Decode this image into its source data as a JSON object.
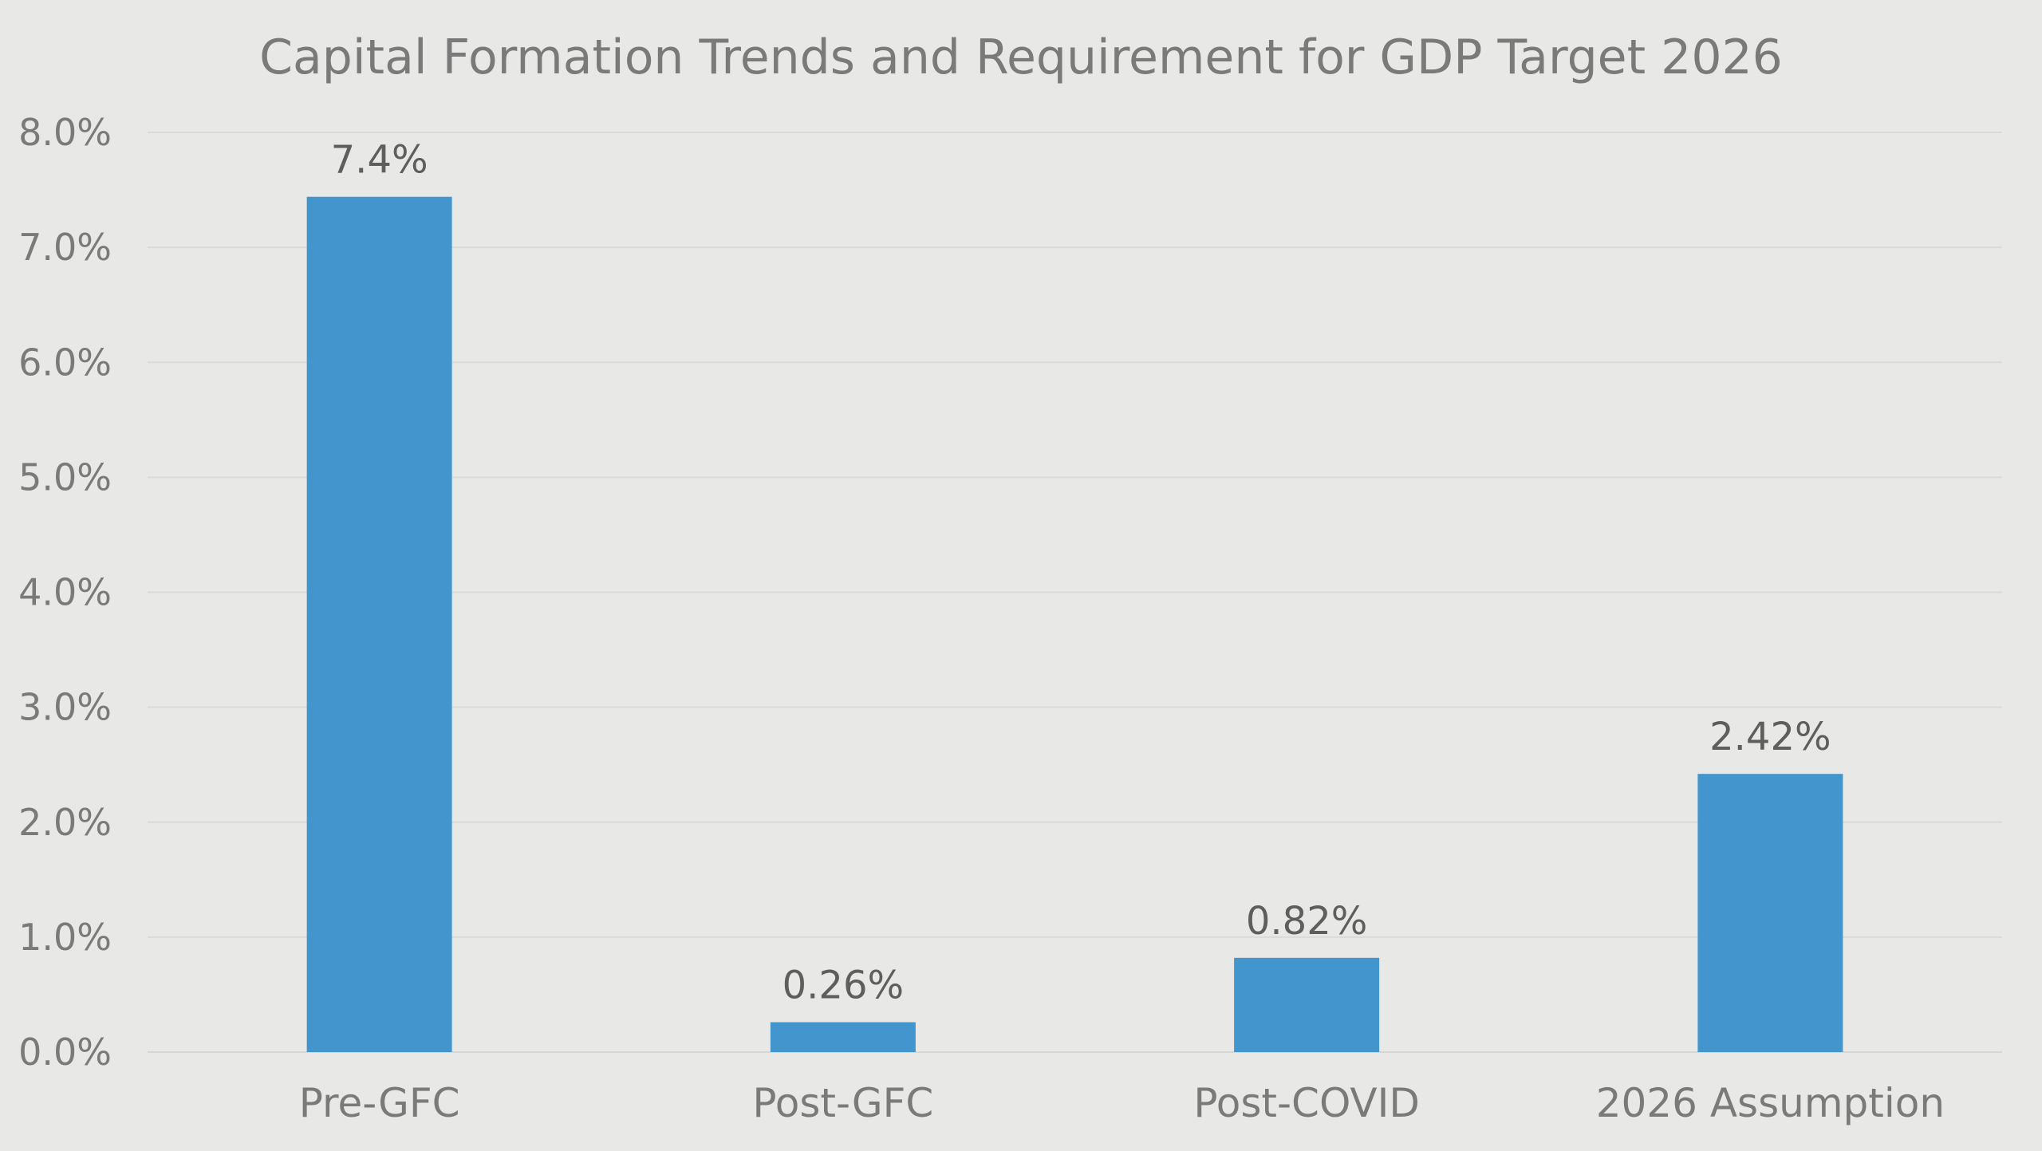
{
  "chart_data": {
    "type": "bar",
    "title": "Capital Formation Trends and Requirement for GDP Target 2026",
    "xlabel": "",
    "ylabel": "",
    "categories": [
      "Pre-GFC",
      "Post-GFC",
      "Post-COVID",
      "2026 Assumption"
    ],
    "values": [
      7.44,
      0.26,
      0.82,
      2.42
    ],
    "data_labels": [
      "7.4%",
      "0.26%",
      "0.82%",
      "2.42%"
    ],
    "ylim": [
      0,
      8
    ],
    "yticks": [
      0,
      1,
      2,
      3,
      4,
      5,
      6,
      7,
      8
    ],
    "ytick_labels": [
      "0.0%",
      "1.0%",
      "2.0%",
      "3.0%",
      "4.0%",
      "5.0%",
      "6.0%",
      "7.0%",
      "8.0%"
    ],
    "grid": true,
    "legend": "none",
    "bar_color": "#4296cd",
    "background_color": "#e8e8e6"
  }
}
